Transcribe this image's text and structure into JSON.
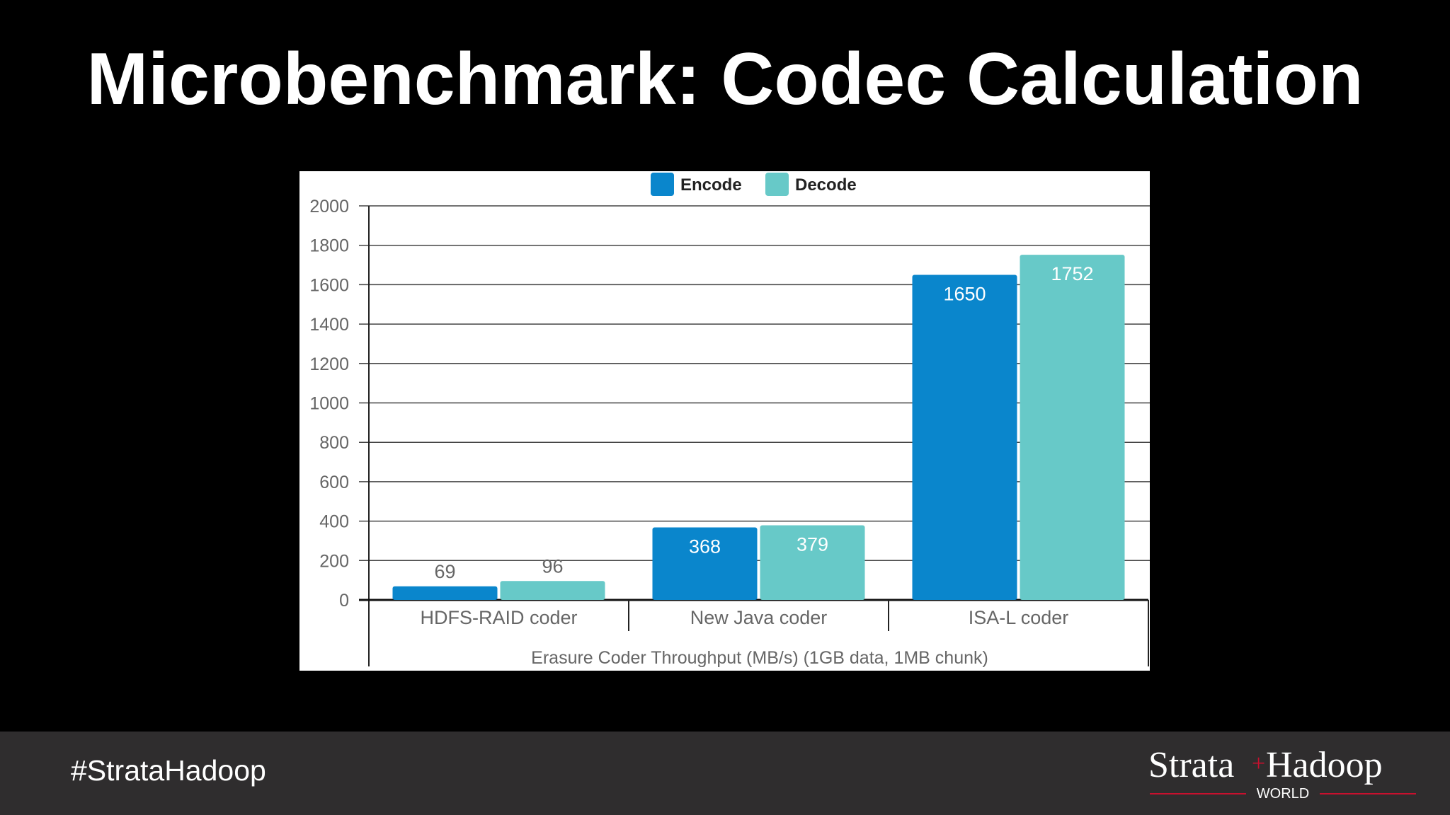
{
  "slide": {
    "title": "Microbenchmark: Codec Calculation",
    "hashtag": "#StrataHadoop",
    "logo": {
      "word_left": "Strata",
      "word_right": "Hadoop",
      "sub": "WORLD",
      "plus_color": "#c8102e",
      "rule_color": "#c8102e"
    }
  },
  "chart_data": {
    "type": "bar",
    "categories": [
      "HDFS-RAID coder",
      "New Java coder",
      "ISA-L coder"
    ],
    "series": [
      {
        "name": "Encode",
        "color": "#0a86cc",
        "values": [
          69,
          368,
          1650
        ]
      },
      {
        "name": "Decode",
        "color": "#67c9c8",
        "values": [
          96,
          379,
          1752
        ]
      }
    ],
    "xlabel": "Erasure Coder Throughput (MB/s) (1GB data, 1MB chunk)",
    "ylabel": "",
    "ylim": [
      0,
      2000
    ],
    "yticks": [
      0,
      200,
      400,
      600,
      800,
      1000,
      1200,
      1400,
      1600,
      1800,
      2000
    ],
    "grid": true,
    "legend_position": "top-center",
    "data_labels": true
  }
}
